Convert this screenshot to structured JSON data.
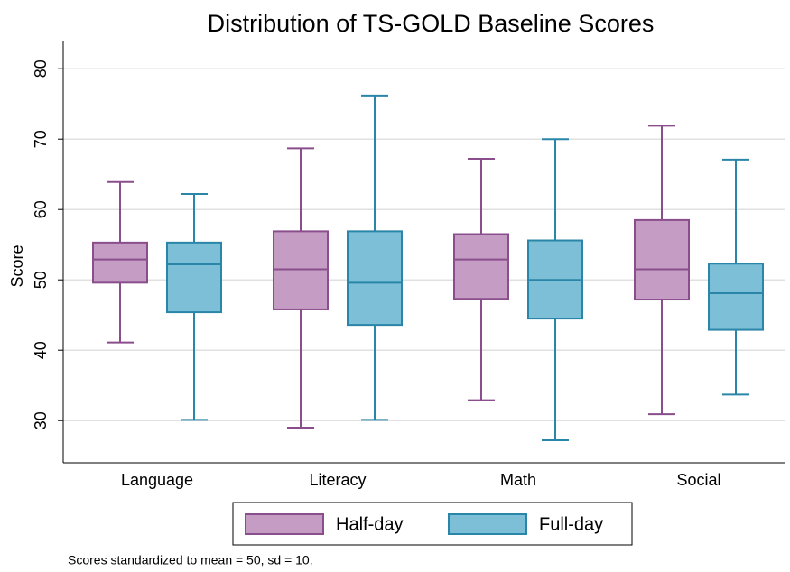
{
  "chart_data": {
    "type": "box",
    "title": "Distribution of TS-GOLD Baseline Scores",
    "y_label": "Score",
    "note": "Scores standardized to mean = 50, sd = 10.",
    "categories": [
      "Language",
      "Literacy",
      "Math",
      "Social"
    ],
    "series": [
      {
        "name": "Half-day",
        "color": "#c49cc4",
        "edge_color": "#8a4e8c",
        "min": [
          41.1,
          29.0,
          32.9,
          30.9
        ],
        "q1": [
          49.6,
          45.8,
          47.3,
          47.2
        ],
        "median": [
          52.9,
          51.5,
          52.9,
          51.5
        ],
        "q3": [
          55.3,
          56.9,
          56.5,
          58.5
        ],
        "max": [
          63.9,
          68.7,
          67.2,
          71.9
        ]
      },
      {
        "name": "Full-day",
        "color": "#7ebfd8",
        "edge_color": "#2a86a8",
        "min": [
          30.1,
          30.1,
          27.2,
          33.7
        ],
        "q1": [
          45.4,
          43.6,
          44.5,
          42.9
        ],
        "median": [
          52.2,
          49.6,
          50.0,
          48.1
        ],
        "q3": [
          55.3,
          56.9,
          55.6,
          52.3
        ],
        "max": [
          62.2,
          76.2,
          70.0,
          67.1
        ]
      }
    ],
    "ylim": [
      24,
      84
    ],
    "yticks": [
      30,
      40,
      50,
      60,
      70,
      80
    ],
    "grid": true,
    "legend": "bottom"
  }
}
